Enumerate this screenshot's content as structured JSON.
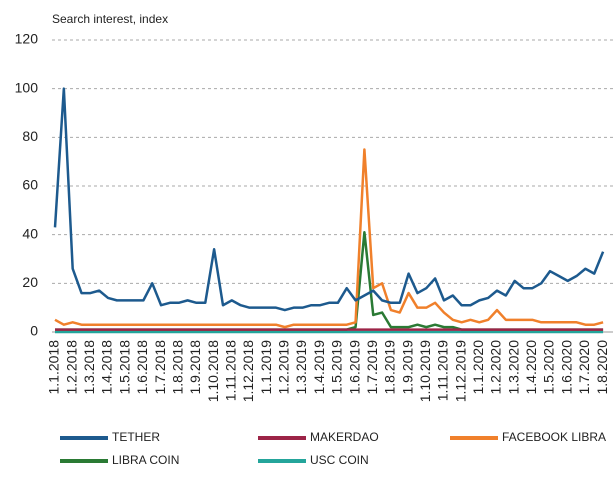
{
  "chart_data": {
    "type": "line",
    "y_label": "Search interest, index",
    "categories": [
      "1.1.2018",
      null,
      "1.2.2018",
      null,
      "1.3.2018",
      null,
      "1.4.2018",
      null,
      "1.5.2018",
      null,
      "1.6.2018",
      null,
      "1.7.2018",
      null,
      "1.8.2018",
      null,
      "1.9.2018",
      null,
      "1.10.2018",
      null,
      "1.11.2018",
      null,
      "1.12.2018",
      null,
      "1.1.2019",
      null,
      "1.2.2019",
      null,
      "1.3.2019",
      null,
      "1.4.2019",
      null,
      "1.5.2019",
      null,
      "1.6.2019",
      null,
      "1.7.2019",
      null,
      "1.8.2019",
      null,
      "1.9.2019",
      null,
      "1.10.2019",
      null,
      "1.11.2019",
      null,
      "1.12.2019",
      null,
      "1.1.2020",
      null,
      "1.2.2020",
      null,
      "1.3.2020",
      null,
      "1.4.2020",
      null,
      "1.5.2020",
      null,
      "1.6.2020",
      null,
      "1.7.2020",
      null,
      "1.8.2020"
    ],
    "series": [
      {
        "name": "TETHER",
        "color": "#1d5a8e",
        "values": [
          43,
          100,
          26,
          16,
          16,
          17,
          14,
          13,
          13,
          13,
          13,
          20,
          11,
          12,
          12,
          13,
          12,
          12,
          34,
          11,
          13,
          11,
          10,
          10,
          10,
          10,
          9,
          10,
          10,
          11,
          11,
          12,
          12,
          18,
          13,
          15,
          17,
          13,
          12,
          12,
          24,
          16,
          18,
          22,
          13,
          15,
          11,
          11,
          13,
          14,
          17,
          15,
          21,
          18,
          18,
          20,
          25,
          23,
          21,
          23,
          26,
          24,
          33
        ]
      },
      {
        "name": "MAKERDAO",
        "color": "#9c2447",
        "values": [
          1,
          1,
          1,
          1,
          1,
          1,
          1,
          1,
          1,
          1,
          1,
          1,
          1,
          1,
          1,
          1,
          1,
          1,
          1,
          1,
          1,
          1,
          1,
          1,
          1,
          1,
          1,
          1,
          1,
          1,
          1,
          1,
          1,
          1,
          1,
          1,
          1,
          1,
          1,
          1,
          1,
          1,
          1,
          1,
          1,
          1,
          1,
          1,
          1,
          1,
          1,
          1,
          1,
          1,
          1,
          1,
          1,
          1,
          1,
          1,
          1,
          1,
          1
        ]
      },
      {
        "name": "FACEBOOK LIBRA",
        "color": "#f0802b",
        "values": [
          5,
          3,
          4,
          3,
          3,
          3,
          3,
          3,
          3,
          3,
          3,
          3,
          3,
          3,
          3,
          3,
          3,
          3,
          3,
          3,
          3,
          3,
          3,
          3,
          3,
          3,
          2,
          3,
          3,
          3,
          3,
          3,
          3,
          3,
          4,
          75,
          18,
          20,
          9,
          8,
          16,
          10,
          10,
          12,
          8,
          5,
          4,
          5,
          4,
          5,
          9,
          5,
          5,
          5,
          5,
          4,
          4,
          4,
          4,
          4,
          3,
          3,
          4
        ]
      },
      {
        "name": "LIBRA COIN",
        "color": "#2a7a34",
        "values": [
          1,
          1,
          1,
          1,
          1,
          1,
          1,
          1,
          1,
          1,
          1,
          1,
          1,
          1,
          1,
          1,
          1,
          1,
          1,
          1,
          1,
          1,
          1,
          1,
          1,
          1,
          1,
          1,
          1,
          1,
          1,
          1,
          1,
          1,
          2,
          41,
          7,
          8,
          2,
          2,
          2,
          3,
          2,
          3,
          2,
          2,
          1,
          1,
          1,
          1,
          1,
          1,
          1,
          1,
          1,
          1,
          1,
          1,
          1,
          1,
          1,
          1,
          1
        ]
      },
      {
        "name": "USC COIN",
        "color": "#24a59b",
        "values": [
          0,
          0,
          0,
          0,
          0,
          0,
          0,
          0,
          0,
          0,
          0,
          0,
          0,
          0,
          0,
          0,
          0,
          0,
          0,
          0,
          0,
          0,
          0,
          0,
          0,
          0,
          0,
          0,
          0,
          0,
          0,
          0,
          0,
          0,
          0,
          0,
          0,
          0,
          0,
          0,
          0,
          0,
          0,
          0,
          0,
          0,
          0,
          0,
          0,
          0,
          0,
          0,
          0,
          0,
          0,
          0,
          0,
          0,
          0,
          0,
          0,
          0,
          0
        ]
      }
    ],
    "ylim": [
      0,
      120
    ],
    "yticks": [
      0,
      20,
      40,
      60,
      80,
      100,
      120
    ],
    "grid": true,
    "legend": "bottom"
  }
}
